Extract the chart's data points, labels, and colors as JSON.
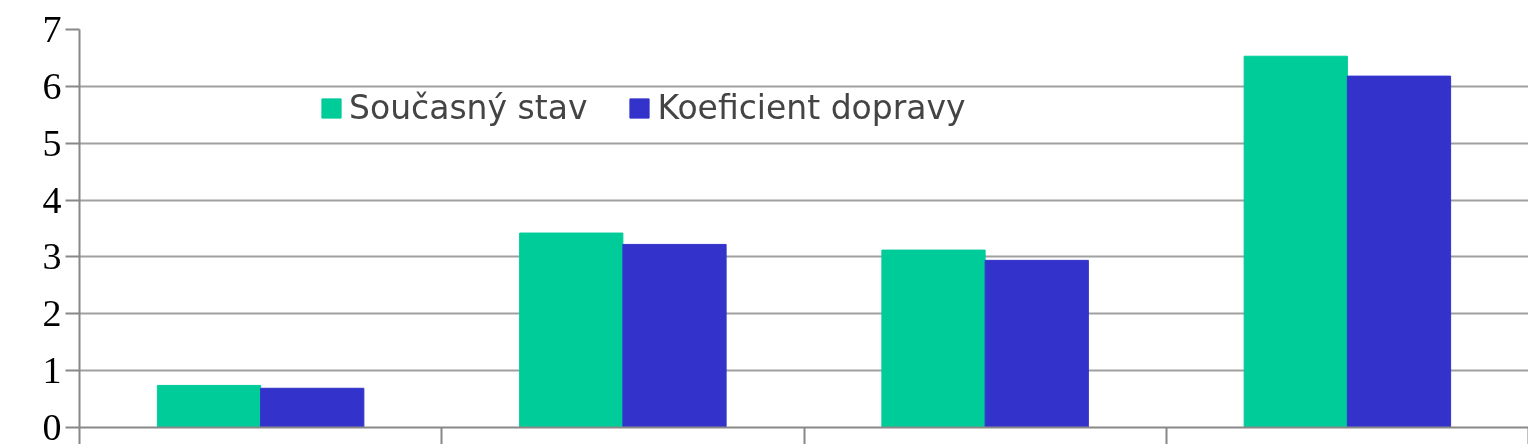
{
  "chart_data": {
    "type": "bar",
    "categories": [
      null,
      null,
      null,
      null
    ],
    "series": [
      {
        "name": "Současný stav",
        "color": "#00cc99",
        "values": [
          0.74,
          3.42,
          3.12,
          6.53
        ]
      },
      {
        "name": "Koeficient dopravy",
        "color": "#3333cc",
        "values": [
          0.69,
          3.22,
          2.94,
          6.18
        ]
      }
    ],
    "ylim": [
      0,
      7
    ],
    "yticks": [
      0,
      1,
      2,
      3,
      4,
      5,
      6,
      7
    ],
    "grid": "y",
    "legend": "top",
    "tick_labels": "y"
  }
}
